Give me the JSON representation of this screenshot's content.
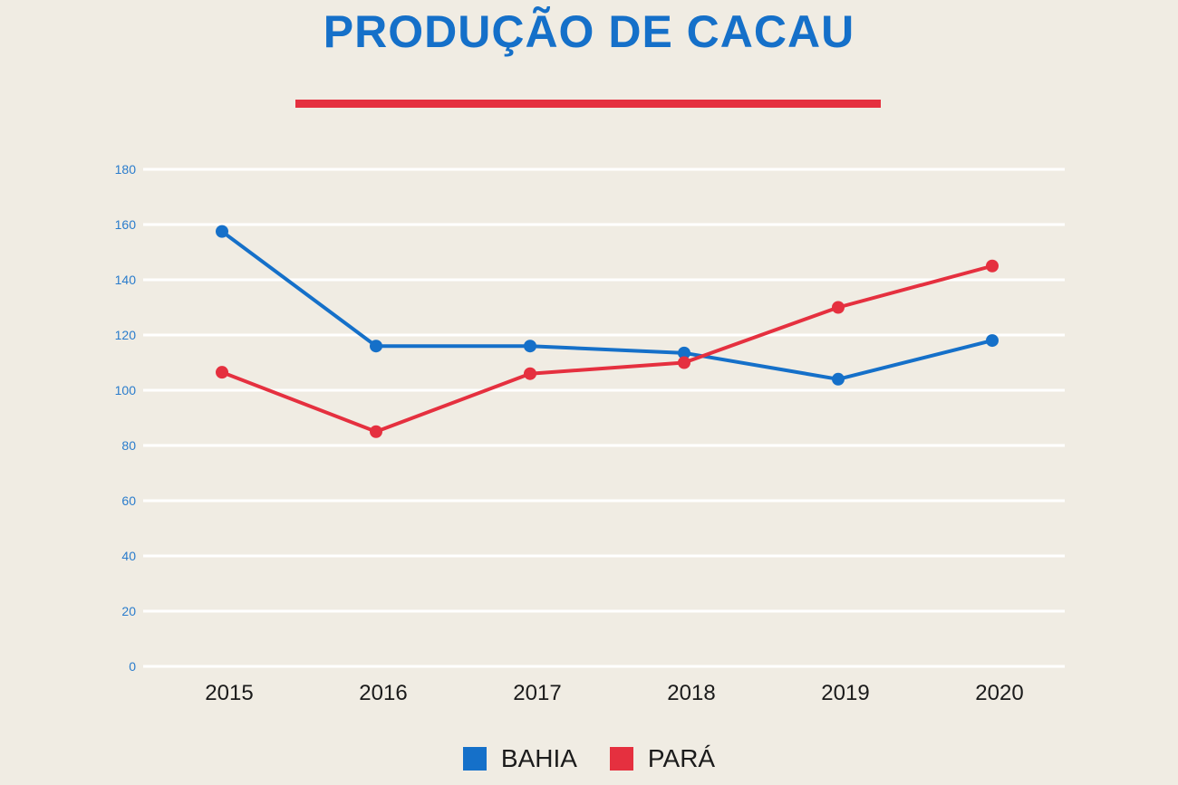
{
  "colors": {
    "background": "#f0ece3",
    "title": "#1570c9",
    "accent": "#e5303f",
    "grid": "#ffffff",
    "ytick": "#2a7ccc",
    "xtick": "#1b1b1b"
  },
  "chart_data": {
    "type": "line",
    "title": "PRODUÇÃO DE CACAU",
    "xlabel": "",
    "ylabel": "",
    "categories": [
      "2015",
      "2016",
      "2017",
      "2018",
      "2019",
      "2020"
    ],
    "ylim": [
      0,
      180
    ],
    "yticks": [
      0,
      20,
      40,
      60,
      80,
      100,
      120,
      140,
      160,
      180
    ],
    "grid": true,
    "legend_position": "bottom-center",
    "series": [
      {
        "name": "BAHIA",
        "color": "#1570c9",
        "values": [
          157.5,
          116,
          116,
          113.5,
          104,
          118
        ]
      },
      {
        "name": "PARÁ",
        "color": "#e5303f",
        "values": [
          106.5,
          85,
          106,
          110,
          130,
          145
        ]
      }
    ]
  }
}
